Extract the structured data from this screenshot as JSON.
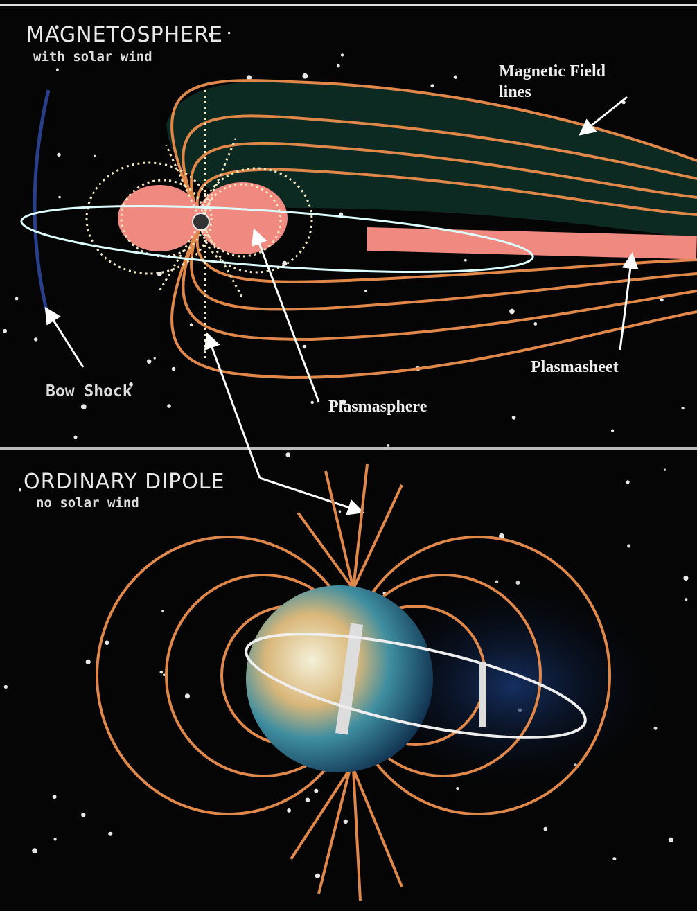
{
  "top_panel": {
    "title": "MAGNETOSPHERE",
    "subtitle": "with solar wind",
    "labels": {
      "field_lines": [
        "Magnetic Field",
        "lines"
      ],
      "bow_shock": "Bow Shock",
      "plasmasphere": "Plasmasphere",
      "plasmasheet": "Plasmasheet"
    }
  },
  "bottom_panel": {
    "title": "ORDINARY DIPOLE",
    "subtitle": "no solar wind"
  }
}
